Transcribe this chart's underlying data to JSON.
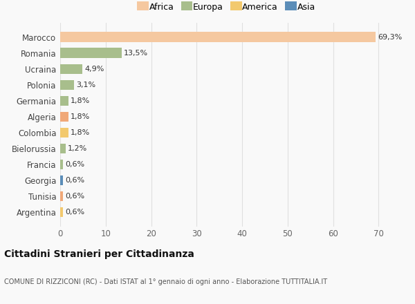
{
  "categories": [
    "Argentina",
    "Tunisia",
    "Georgia",
    "Francia",
    "Bielorussia",
    "Colombia",
    "Algeria",
    "Germania",
    "Polonia",
    "Ucraina",
    "Romania",
    "Marocco"
  ],
  "values": [
    0.6,
    0.6,
    0.6,
    0.6,
    1.2,
    1.8,
    1.8,
    1.8,
    3.1,
    4.9,
    13.5,
    69.3
  ],
  "labels": [
    "0,6%",
    "0,6%",
    "0,6%",
    "0,6%",
    "1,2%",
    "1,8%",
    "1,8%",
    "1,8%",
    "3,1%",
    "4,9%",
    "13,5%",
    "69,3%"
  ],
  "colors": [
    "#f2c96e",
    "#f0a878",
    "#5b8db8",
    "#a8be8c",
    "#a8be8c",
    "#f2c96e",
    "#f0a878",
    "#a8be8c",
    "#a8be8c",
    "#a8be8c",
    "#a8be8c",
    "#f5c8a0"
  ],
  "continent": [
    "America",
    "Africa",
    "Asia",
    "Europa",
    "Europa",
    "America",
    "Africa",
    "Europa",
    "Europa",
    "Europa",
    "Europa",
    "Africa"
  ],
  "legend_labels": [
    "Africa",
    "Europa",
    "America",
    "Asia"
  ],
  "legend_colors": [
    "#f5c8a0",
    "#a8be8c",
    "#f2c96e",
    "#5b8db8"
  ],
  "title": "Cittadini Stranieri per Cittadinanza",
  "subtitle": "COMUNE DI RIZZICONI (RC) - Dati ISTAT al 1° gennaio di ogni anno - Elaborazione TUTTITALIA.IT",
  "xlim": [
    0,
    73
  ],
  "xticks": [
    0,
    10,
    20,
    30,
    40,
    50,
    60,
    70
  ],
  "background_color": "#f9f9f9",
  "bar_height": 0.62,
  "grid_color": "#e0e0e0"
}
